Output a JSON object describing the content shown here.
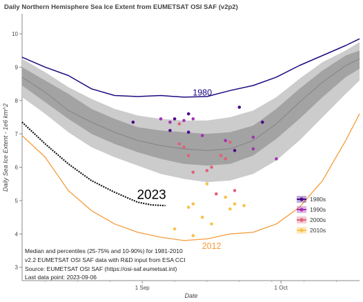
{
  "chart_data": {
    "type": "line",
    "title": "Daily Northern Hemisphere Sea Ice Extent from EUMETSAT OSI SAF (v2p2)",
    "xlabel": "Date",
    "ylabel": "Daily Sea Ice Extent - 1e6 km^2",
    "xlim": [
      "2023-08-06",
      "2023-10-18"
    ],
    "ylim": [
      2.6,
      10.6
    ],
    "yticks": [
      3,
      4,
      5,
      6,
      7,
      8,
      9,
      10
    ],
    "xticks": [
      {
        "date": "2023-09-01",
        "label": "1 Sep"
      },
      {
        "date": "2023-10-01",
        "label": "1 Oct"
      }
    ],
    "grid": false,
    "legend_position": "bottom-right",
    "notes": [
      "Median and percentiles (25-75% and 10-90%) for 1981-2010",
      "v2.2 EUMETSAT OSI SAF data with R&D input from ESA CCI",
      "Source: EUMETSAT OSI SAF (https://osi-saf.eumetsat.int)",
      "Last data point: 2023-09-06"
    ],
    "colors": {
      "band_10_90": "#cccccc",
      "band_25_75": "#a3a3a3",
      "median": "#888888",
      "line_1980": "#1a0a80",
      "line_2012": "#f59a3a",
      "line_2023": "#111111",
      "minima_1980s": "#4b0b8a",
      "minima_1990s": "#a531b5",
      "minima_2000s": "#e0627a",
      "minima_2010s": "#f8c24a"
    },
    "x_dates": [
      "2023-08-06",
      "2023-08-11",
      "2023-08-16",
      "2023-08-21",
      "2023-08-26",
      "2023-08-31",
      "2023-09-05",
      "2023-09-10",
      "2023-09-15",
      "2023-09-20",
      "2023-09-25",
      "2023-09-30",
      "2023-10-05",
      "2023-10-10",
      "2023-10-15",
      "2023-10-18"
    ],
    "percentile_10": [
      8.1,
      7.6,
      7.05,
      6.6,
      6.3,
      6.05,
      5.8,
      5.65,
      5.55,
      5.6,
      5.8,
      6.2,
      6.8,
      7.5,
      8.2,
      8.6
    ],
    "percentile_25": [
      8.45,
      7.95,
      7.45,
      7.0,
      6.7,
      6.45,
      6.25,
      6.1,
      6.05,
      6.1,
      6.35,
      6.85,
      7.45,
      8.1,
      8.7,
      8.95
    ],
    "median": [
      8.7,
      8.25,
      7.7,
      7.35,
      7.05,
      6.8,
      6.65,
      6.55,
      6.5,
      6.55,
      6.8,
      7.3,
      7.95,
      8.55,
      9.05,
      9.25
    ],
    "percentile_75": [
      9.0,
      8.6,
      8.2,
      7.75,
      7.45,
      7.2,
      7.1,
      7.05,
      7.0,
      7.05,
      7.25,
      7.75,
      8.35,
      8.9,
      9.35,
      9.5
    ],
    "percentile_90": [
      9.25,
      8.85,
      8.4,
      8.05,
      7.75,
      7.55,
      7.45,
      7.4,
      7.4,
      7.5,
      7.7,
      8.1,
      8.65,
      9.15,
      9.5,
      9.75
    ],
    "series": [
      {
        "name": "1980",
        "x": [
          "2023-08-06",
          "2023-08-11",
          "2023-08-16",
          "2023-08-21",
          "2023-08-26",
          "2023-08-31",
          "2023-09-05",
          "2023-09-10",
          "2023-09-15",
          "2023-09-20",
          "2023-09-25",
          "2023-09-30",
          "2023-10-05",
          "2023-10-10",
          "2023-10-15",
          "2023-10-18"
        ],
        "values": [
          9.3,
          9.0,
          8.75,
          8.35,
          8.15,
          8.12,
          8.15,
          8.1,
          8.12,
          8.3,
          8.45,
          8.7,
          9.05,
          9.35,
          9.65,
          9.85
        ]
      },
      {
        "name": "2012",
        "x": [
          "2023-08-06",
          "2023-08-11",
          "2023-08-16",
          "2023-08-21",
          "2023-08-26",
          "2023-08-31",
          "2023-09-05",
          "2023-09-10",
          "2023-09-15",
          "2023-09-20",
          "2023-09-25",
          "2023-09-30",
          "2023-10-05",
          "2023-10-10",
          "2023-10-15",
          "2023-10-18"
        ],
        "values": [
          6.95,
          6.3,
          5.3,
          4.7,
          4.3,
          4.05,
          3.9,
          3.8,
          3.85,
          4.0,
          4.05,
          4.3,
          4.8,
          5.6,
          6.8,
          7.6
        ]
      },
      {
        "name": "2023",
        "x": [
          "2023-08-06",
          "2023-08-11",
          "2023-08-16",
          "2023-08-21",
          "2023-08-26",
          "2023-08-31",
          "2023-09-03",
          "2023-09-06"
        ],
        "values": [
          7.35,
          6.7,
          6.1,
          5.6,
          5.25,
          4.95,
          4.87,
          4.85
        ]
      }
    ],
    "annotations": [
      {
        "text": "1980",
        "x": "2023-09-14",
        "y": 8.15
      },
      {
        "text": "2023",
        "x": "2023-09-03",
        "y": 5.05
      },
      {
        "text": "2012",
        "x": "2023-09-16",
        "y": 3.55
      }
    ],
    "legend_entries": [
      "1980s",
      "1990s",
      "2000s",
      "2010s"
    ],
    "minima": [
      {
        "decade": "1980s",
        "points": [
          [
            "2023-08-30",
            7.35
          ],
          [
            "2023-09-11",
            7.6
          ],
          [
            "2023-09-08",
            7.45
          ],
          [
            "2023-09-07",
            7.1
          ],
          [
            "2023-09-11",
            7.05
          ],
          [
            "2023-09-22",
            7.8
          ],
          [
            "2023-09-27",
            7.35
          ],
          [
            "2023-09-21",
            6.5
          ]
        ]
      },
      {
        "decade": "1990s",
        "points": [
          [
            "2023-09-05",
            7.45
          ],
          [
            "2023-09-10",
            7.4
          ],
          [
            "2023-09-12",
            7.45
          ],
          [
            "2023-09-14",
            6.95
          ],
          [
            "2023-09-19",
            6.8
          ],
          [
            "2023-09-25",
            6.9
          ],
          [
            "2023-09-25",
            6.55
          ],
          [
            "2023-09-30",
            6.25
          ],
          [
            "2023-09-07",
            7.35
          ]
        ]
      },
      {
        "decade": "2000s",
        "points": [
          [
            "2023-09-09",
            7.3
          ],
          [
            "2023-09-09",
            6.7
          ],
          [
            "2023-09-10",
            6.6
          ],
          [
            "2023-09-11",
            6.35
          ],
          [
            "2023-09-12",
            5.85
          ],
          [
            "2023-09-16",
            6.0
          ],
          [
            "2023-09-18",
            6.35
          ],
          [
            "2023-09-19",
            6.25
          ],
          [
            "2023-09-20",
            6.75
          ],
          [
            "2023-09-21",
            5.3
          ],
          [
            "2023-09-15",
            5.9
          ],
          [
            "2023-09-17",
            5.2
          ]
        ]
      },
      {
        "decade": "2010s",
        "points": [
          [
            "2023-09-15",
            5.5
          ],
          [
            "2023-09-12",
            4.9
          ],
          [
            "2023-09-11",
            4.8
          ],
          [
            "2023-09-14",
            4.5
          ],
          [
            "2023-09-16",
            4.3
          ],
          [
            "2023-09-19",
            5.1
          ],
          [
            "2023-09-20",
            4.75
          ],
          [
            "2023-09-23",
            4.85
          ],
          [
            "2023-09-12",
            3.95
          ],
          [
            "2023-09-08",
            4.15
          ],
          [
            "2023-09-21",
            4.9
          ]
        ]
      }
    ]
  }
}
